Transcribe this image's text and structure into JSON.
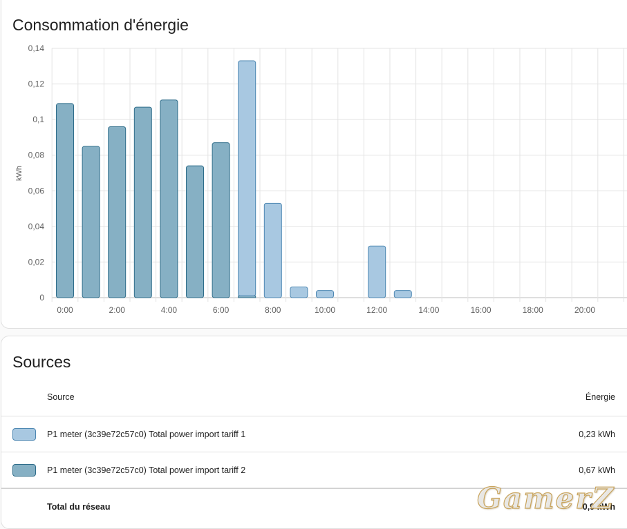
{
  "energy_card": {
    "title": "Consommation d'énergie"
  },
  "chart_data": {
    "type": "bar",
    "title": "Consommation d'énergie",
    "ylabel": "kWh",
    "xlabel": "",
    "ylim": [
      0,
      0.14
    ],
    "y_ticks": [
      "0",
      "0,02",
      "0,04",
      "0,06",
      "0,08",
      "0,1",
      "0,12",
      "0,14"
    ],
    "x_tick_labels": [
      "0:00",
      "2:00",
      "4:00",
      "6:00",
      "8:00",
      "10:00",
      "12:00",
      "14:00",
      "16:00",
      "18:00",
      "20:00"
    ],
    "categories": [
      "0:00",
      "1:00",
      "2:00",
      "3:00",
      "4:00",
      "5:00",
      "6:00",
      "7:00",
      "8:00",
      "9:00",
      "10:00",
      "11:00",
      "12:00",
      "13:00",
      "14:00",
      "15:00",
      "16:00",
      "17:00",
      "18:00",
      "19:00",
      "20:00",
      "21:00"
    ],
    "stacked": true,
    "grid": true,
    "series": [
      {
        "name": "P1 meter (3c39e72c57c0) Total power import tariff 2",
        "fill": "#86b0c4",
        "stroke": "#2f6d8a",
        "values": [
          0.109,
          0.085,
          0.096,
          0.107,
          0.111,
          0.074,
          0.087,
          0.001,
          0,
          0,
          0,
          0,
          0,
          0,
          0,
          0,
          0,
          0,
          0,
          0,
          0,
          0
        ]
      },
      {
        "name": "P1 meter (3c39e72c57c0) Total power import tariff 1",
        "fill": "#a8c8e1",
        "stroke": "#4d87b2",
        "values": [
          0,
          0,
          0,
          0,
          0,
          0,
          0,
          0.132,
          0.053,
          0.006,
          0.004,
          0,
          0.029,
          0.004,
          0,
          0,
          0,
          0,
          0,
          0,
          0,
          0
        ]
      }
    ]
  },
  "sources_card": {
    "title": "Sources",
    "header": {
      "source": "Source",
      "energy": "Énergie"
    },
    "rows": [
      {
        "name": "P1 meter (3c39e72c57c0) Total power import tariff 1",
        "value": "0,23 kWh",
        "fill": "#a8c8e1",
        "stroke": "#4d87b2"
      },
      {
        "name": "P1 meter (3c39e72c57c0) Total power import tariff 2",
        "value": "0,67 kWh",
        "fill": "#86b0c4",
        "stroke": "#2f6d8a"
      }
    ],
    "total": {
      "label": "Total du réseau",
      "value": "0,9 kWh"
    }
  },
  "watermark": {
    "text": "GamerZ"
  }
}
